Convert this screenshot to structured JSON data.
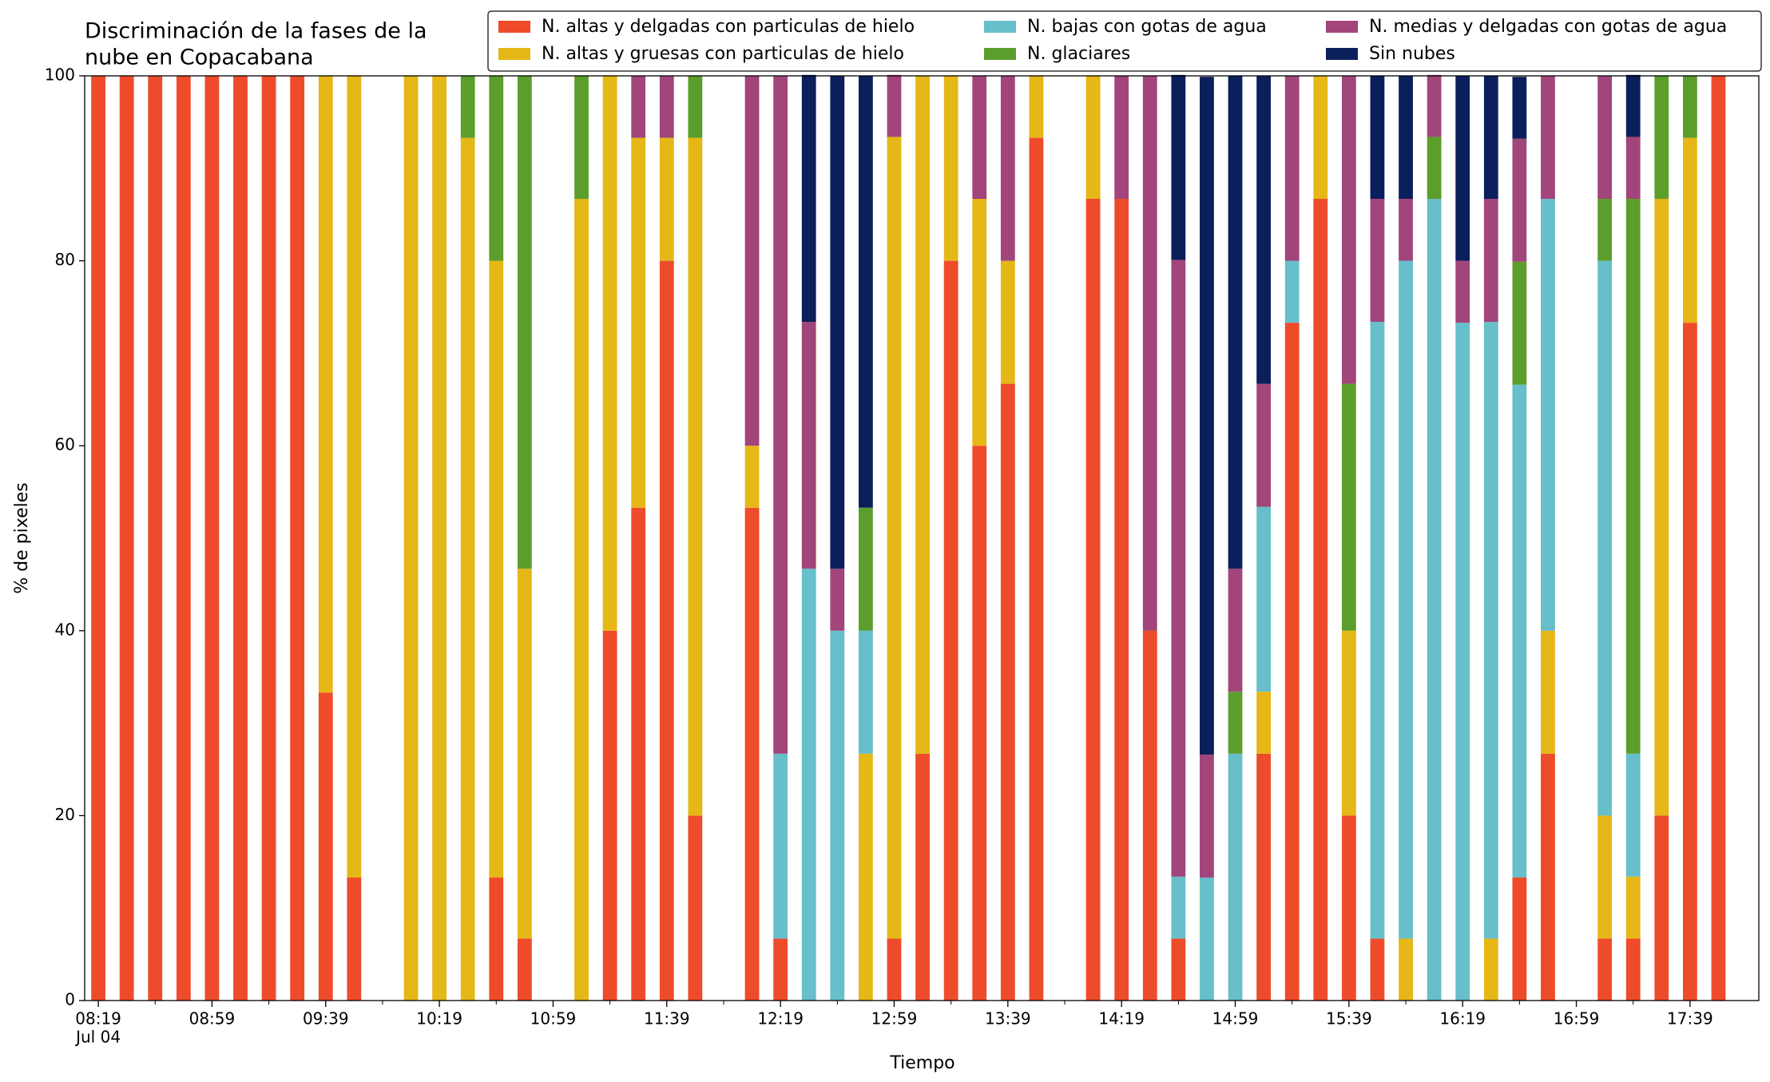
{
  "chart_data": {
    "type": "stacked_bar",
    "title": [
      "Discriminación de la fases de la",
      "nube en Copacabana"
    ],
    "x_label": "Tiempo",
    "y_label": "% de pixeles",
    "x_date_label": "Jul 04",
    "categories": [
      "08:19",
      null,
      null,
      null,
      "08:59",
      null,
      null,
      null,
      "09:39",
      null,
      null,
      null,
      "10:19",
      null,
      null,
      null,
      "10:59",
      null,
      null,
      null,
      "11:39",
      null,
      null,
      null,
      "12:19",
      null,
      null,
      null,
      "12:59",
      null,
      null,
      null,
      "13:39",
      null,
      null,
      null,
      "14:19",
      null,
      null,
      null,
      "14:59",
      null,
      null,
      null,
      "15:39",
      null,
      null,
      null,
      "16:19",
      null,
      null,
      null,
      "16:59",
      null,
      null,
      null,
      "17:39",
      null
    ],
    "ylim": [
      0,
      100
    ],
    "yticks": [
      0,
      20,
      40,
      60,
      80,
      100
    ],
    "grid": false,
    "series": [
      {
        "name": "N. altas y delgadas con particulas de hielo",
        "color": "#ee4b2b",
        "values": [
          100,
          100,
          100,
          100,
          100,
          100,
          100,
          100,
          33.3,
          13.3,
          0,
          0,
          0,
          0,
          13.3,
          6.7,
          0,
          0,
          40,
          53.3,
          80,
          20,
          0,
          53.3,
          6.7,
          0,
          0,
          0,
          6.7,
          26.7,
          80,
          60,
          66.7,
          93.3,
          0,
          86.7,
          86.7,
          40,
          6.7,
          0,
          0,
          26.7,
          73.3,
          86.7,
          20,
          6.7,
          0,
          0,
          0,
          0,
          13.3,
          26.7,
          0,
          6.7,
          6.7,
          20,
          73.3,
          100
        ]
      },
      {
        "name": "N. altas y gruesas con particulas de hielo",
        "color": "#e5b717",
        "values": [
          0,
          0,
          0,
          0,
          0,
          0,
          0,
          0,
          66.7,
          86.7,
          0,
          100,
          100,
          93.3,
          66.7,
          40,
          0,
          86.7,
          60,
          40,
          13.3,
          73.3,
          0,
          6.7,
          0,
          0,
          0,
          26.7,
          86.7,
          73.3,
          20,
          26.7,
          13.3,
          6.7,
          0,
          13.3,
          0,
          0,
          0,
          0,
          0,
          6.7,
          0,
          13.3,
          20,
          0,
          6.7,
          0,
          0,
          6.7,
          0,
          13.3,
          0,
          13.3,
          6.7,
          66.7,
          20,
          0
        ]
      },
      {
        "name": "N. bajas con gotas de agua",
        "color": "#66bfca",
        "values": [
          0,
          0,
          0,
          0,
          0,
          0,
          0,
          0,
          0,
          0,
          0,
          0,
          0,
          0,
          0,
          0,
          0,
          0,
          0,
          0,
          0,
          0,
          0,
          0,
          20,
          46.7,
          40,
          13.3,
          0,
          0,
          0,
          0,
          0,
          0,
          0,
          0,
          0,
          0,
          6.7,
          13.3,
          26.7,
          20,
          6.7,
          0,
          0,
          66.7,
          73.3,
          86.7,
          73.3,
          66.7,
          53.3,
          46.7,
          0,
          60,
          13.3,
          0,
          0,
          0
        ]
      },
      {
        "name": "N. glaciares",
        "color": "#5c9e2c",
        "values": [
          0,
          0,
          0,
          0,
          0,
          0,
          0,
          0,
          0,
          0,
          0,
          0,
          0,
          6.7,
          20,
          53.3,
          0,
          13.3,
          0,
          0,
          0,
          6.7,
          0,
          0,
          0,
          0,
          0,
          13.3,
          0,
          0,
          0,
          0,
          0,
          0,
          0,
          0,
          0,
          0,
          0,
          0,
          6.7,
          0,
          0,
          0,
          26.7,
          0,
          0,
          6.7,
          0,
          0,
          13.3,
          0,
          0,
          6.7,
          60,
          13.3,
          6.7,
          0
        ]
      },
      {
        "name": "N. medias y delgadas con gotas de agua",
        "color": "#a2457a",
        "values": [
          0,
          0,
          0,
          0,
          0,
          0,
          0,
          0,
          0,
          0,
          0,
          0,
          0,
          0,
          0,
          0,
          0,
          0,
          0,
          6.7,
          6.7,
          0,
          0,
          40,
          73.3,
          26.7,
          6.7,
          0,
          6.7,
          0,
          0,
          13.3,
          20,
          0,
          0,
          0,
          13.3,
          60,
          66.7,
          13.3,
          13.3,
          13.3,
          20,
          0,
          33.3,
          13.3,
          6.7,
          6.7,
          6.7,
          13.3,
          13.3,
          13.3,
          0,
          13.3,
          6.7,
          0,
          0,
          0
        ]
      },
      {
        "name": "Sin nubes",
        "color": "#0b1f5c",
        "values": [
          0,
          0,
          0,
          0,
          0,
          0,
          0,
          0,
          0,
          0,
          0,
          0,
          0,
          0,
          0,
          0,
          0,
          0,
          0,
          0,
          0,
          0,
          0,
          0,
          0,
          26.7,
          53.3,
          46.7,
          0,
          0,
          0,
          0,
          0,
          0,
          0,
          0,
          0,
          0,
          20,
          73.3,
          53.3,
          33.3,
          0,
          0,
          0,
          13.3,
          13.3,
          0,
          20,
          13.3,
          6.7,
          0,
          0,
          0,
          6.7,
          0,
          0,
          0
        ]
      }
    ]
  }
}
